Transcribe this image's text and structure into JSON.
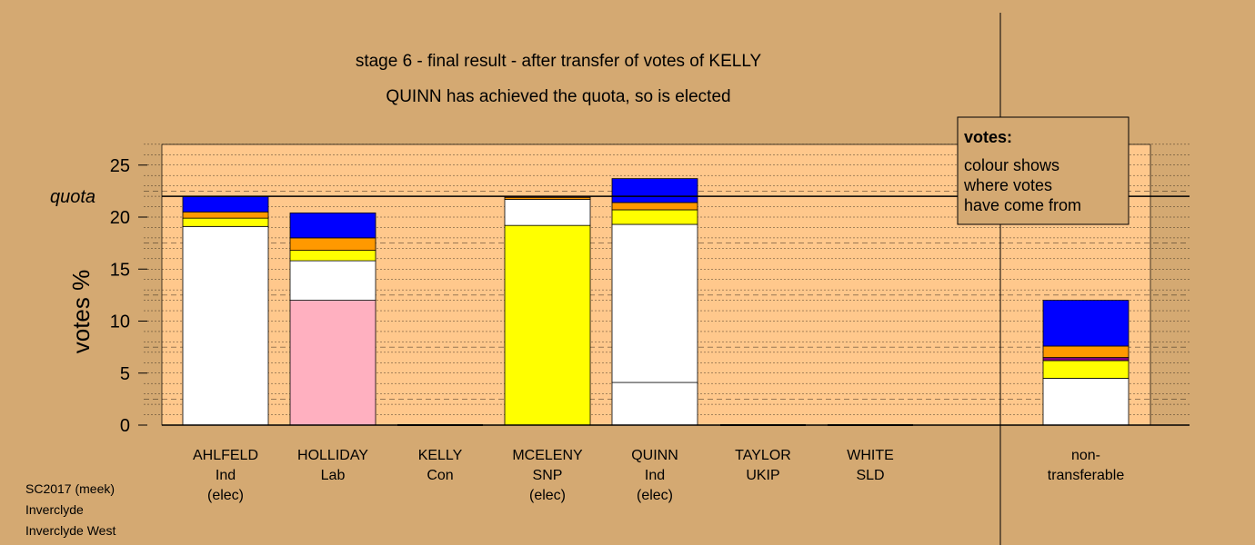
{
  "title": "stage 6 - final result - after transfer of votes of KELLY",
  "subtitle": "QUINN has achieved the quota, so is elected",
  "legend": {
    "heading": "votes:",
    "lines": [
      "colour shows",
      "where votes",
      "have come from"
    ]
  },
  "footer": [
    "SC2017 (meek)",
    "Inverclyde",
    "Inverclyde West"
  ],
  "colors": {
    "background": "#d4a972",
    "plot_area": "#ffc88c",
    "white": "#ffffff",
    "yellow": "#ffff00",
    "orange": "#ff9900",
    "blue": "#0000ff",
    "pink": "#ffb0c0",
    "purple": "#800080",
    "red": "#cc0000"
  },
  "chart_data": {
    "type": "bar",
    "stacked": true,
    "ylabel": "votes %",
    "ylim": [
      0,
      27
    ],
    "yticks": [
      0,
      5,
      10,
      15,
      20,
      25
    ],
    "quota": 22,
    "quota_label": "quota",
    "grid": true,
    "legend_placement": "top-right",
    "categories": [
      {
        "name": "AHLFELD",
        "party": "Ind",
        "status": "(elec)"
      },
      {
        "name": "HOLLIDAY",
        "party": "Lab",
        "status": ""
      },
      {
        "name": "KELLY",
        "party": "Con",
        "status": ""
      },
      {
        "name": "MCELENY",
        "party": "SNP",
        "status": "(elec)"
      },
      {
        "name": "QUINN",
        "party": "Ind",
        "status": "(elec)"
      },
      {
        "name": "TAYLOR",
        "party": "UKIP",
        "status": ""
      },
      {
        "name": "WHITE",
        "party": "SLD",
        "status": ""
      },
      {
        "name": "non-",
        "party": "transferable",
        "status": ""
      }
    ],
    "stacks": [
      [
        {
          "v": 19.1,
          "c": "white"
        },
        {
          "v": 0.8,
          "c": "yellow"
        },
        {
          "v": 0.6,
          "c": "orange"
        },
        {
          "v": 1.5,
          "c": "blue"
        }
      ],
      [
        {
          "v": 12.0,
          "c": "pink"
        },
        {
          "v": 3.8,
          "c": "white"
        },
        {
          "v": 1.0,
          "c": "yellow"
        },
        {
          "v": 1.2,
          "c": "orange"
        },
        {
          "v": 2.4,
          "c": "blue"
        }
      ],
      [],
      [
        {
          "v": 19.2,
          "c": "yellow"
        },
        {
          "v": 2.5,
          "c": "white"
        },
        {
          "v": 0.2,
          "c": "orange"
        },
        {
          "v": 0.1,
          "c": "purple"
        }
      ],
      [
        {
          "v": 4.1,
          "c": "white"
        },
        {
          "v": 15.2,
          "c": "white"
        },
        {
          "v": 1.4,
          "c": "yellow"
        },
        {
          "v": 0.7,
          "c": "orange"
        },
        {
          "v": 2.3,
          "c": "blue"
        }
      ],
      [],
      [],
      [
        {
          "v": 4.5,
          "c": "white"
        },
        {
          "v": 1.7,
          "c": "yellow"
        },
        {
          "v": 0.3,
          "c": "purple"
        },
        {
          "v": 1.1,
          "c": "orange"
        },
        {
          "v": 4.4,
          "c": "blue"
        }
      ]
    ]
  }
}
